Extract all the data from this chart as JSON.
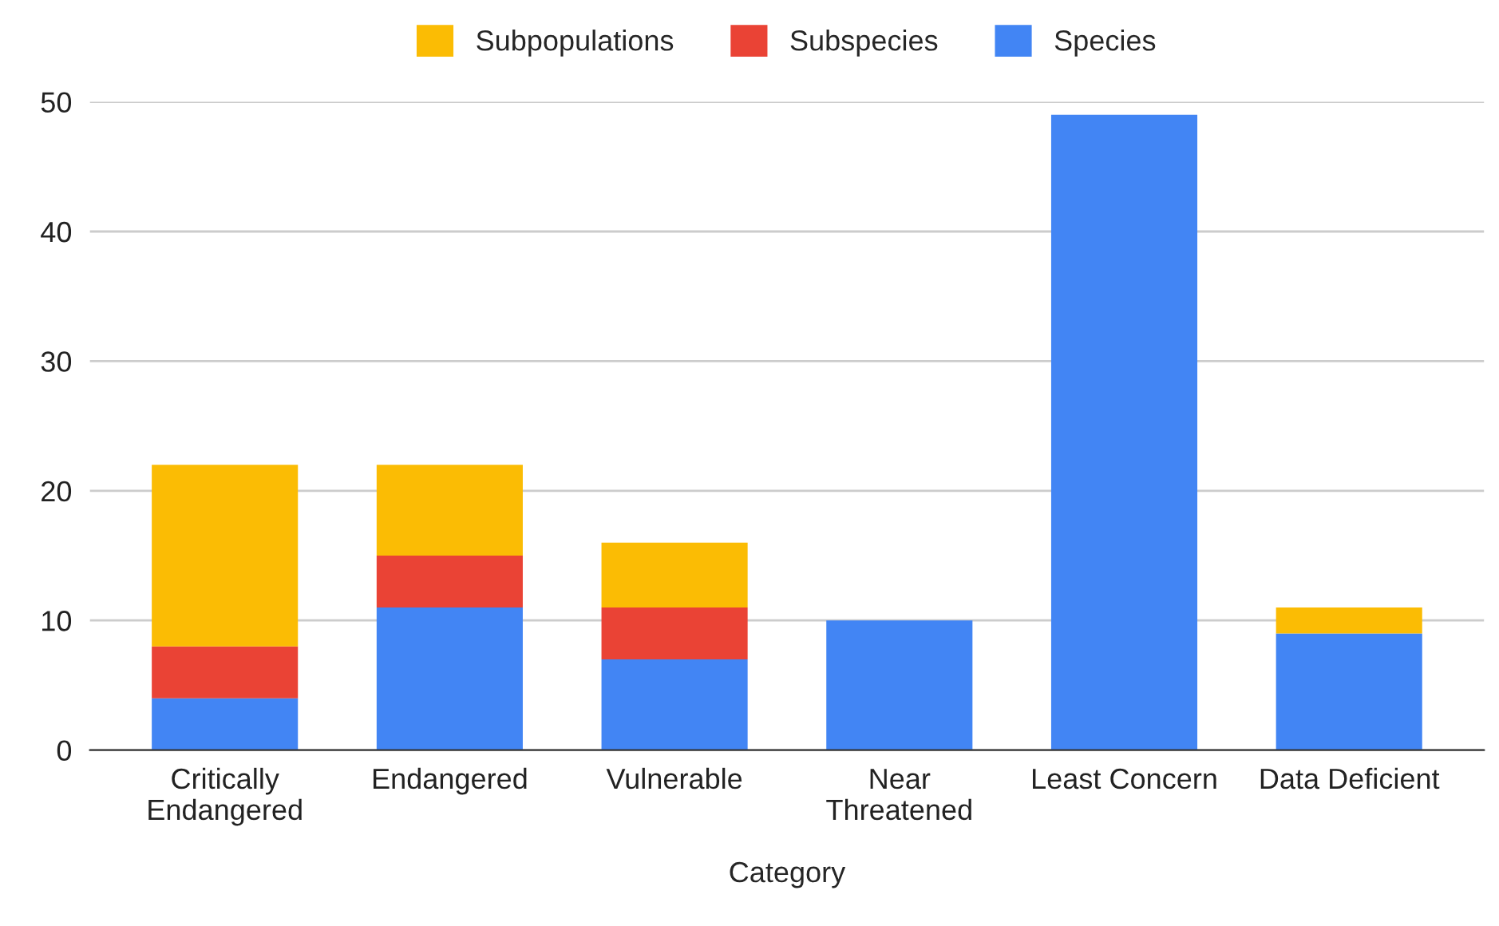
{
  "chart_data": {
    "type": "bar",
    "xlabel": "Category",
    "stacked": true,
    "legend": "top",
    "grid": "y",
    "categories": [
      "Critically\nEndangered",
      "Endangered",
      "Vulnerable",
      "Near\nThreatened",
      "Least Concern",
      "Data Deficient"
    ],
    "series": [
      {
        "name": "Species",
        "color": "#4285f4",
        "values": [
          4,
          11,
          7,
          10,
          49,
          9
        ]
      },
      {
        "name": "Subspecies",
        "color": "#ea4335",
        "values": [
          4,
          4,
          4,
          0,
          0,
          0
        ]
      },
      {
        "name": "Subpopulations",
        "color": "#fbbc04",
        "values": [
          14,
          7,
          5,
          0,
          0,
          2
        ]
      }
    ],
    "ylim": [
      0,
      50
    ],
    "yticks": [
      0,
      10,
      20,
      30,
      40,
      50
    ]
  }
}
